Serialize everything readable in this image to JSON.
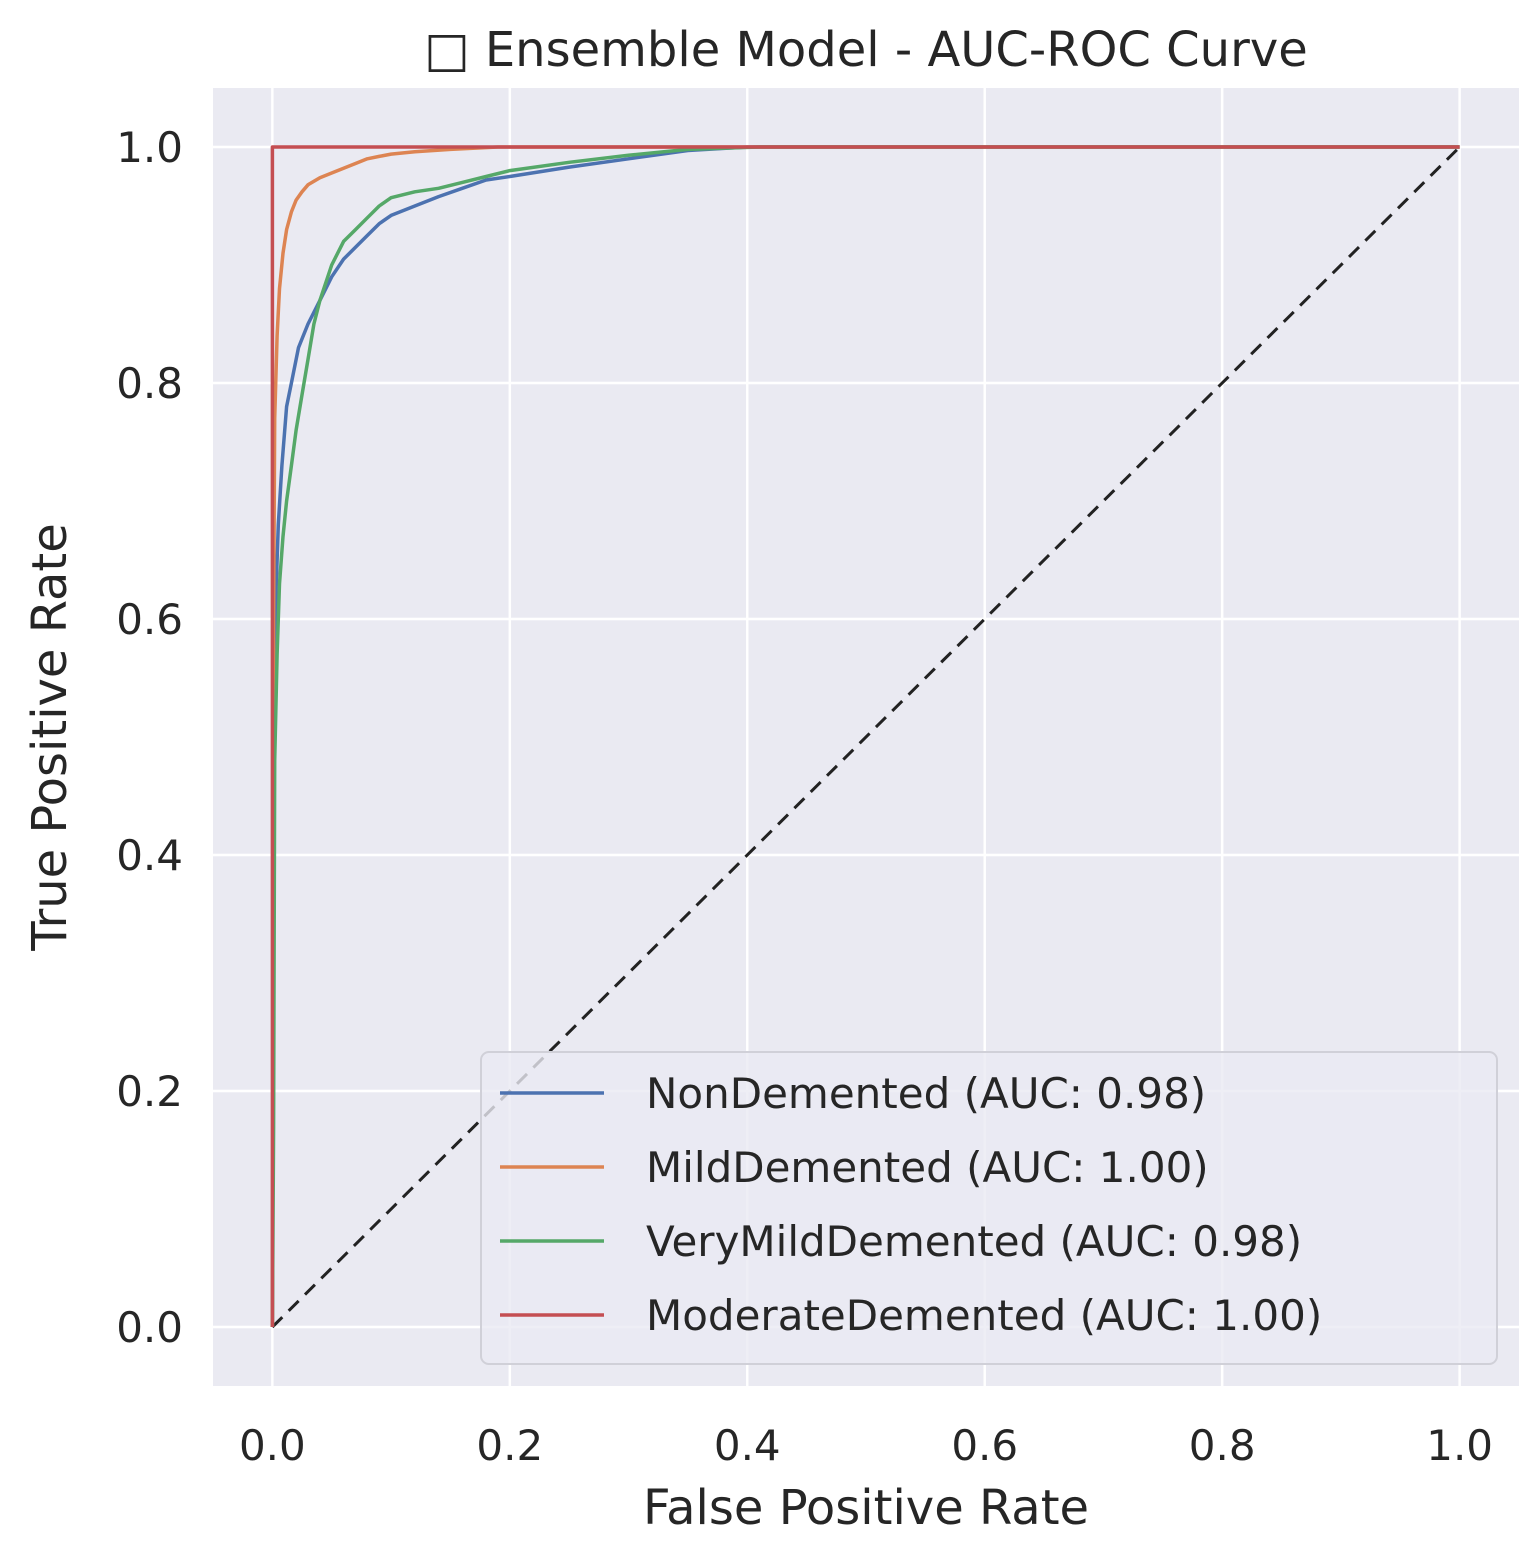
{
  "chart_data": {
    "type": "line",
    "title": "□ Ensemble Model - AUC-ROC Curve",
    "xlabel": "False Positive Rate",
    "ylabel": "True Positive Rate",
    "xlim": [
      -0.05,
      1.05
    ],
    "ylim": [
      -0.05,
      1.05
    ],
    "grid": true,
    "legend_position": "lower-right",
    "xticks": [
      0.0,
      0.2,
      0.4,
      0.6,
      0.8,
      1.0
    ],
    "xtick_labels": [
      "0.0",
      "0.2",
      "0.4",
      "0.6",
      "0.8",
      "1.0"
    ],
    "yticks": [
      0.0,
      0.2,
      0.4,
      0.6,
      0.8,
      1.0
    ],
    "ytick_labels": [
      "0.0",
      "0.2",
      "0.4",
      "0.6",
      "0.8",
      "1.0"
    ],
    "baseline": {
      "x": [
        0,
        1
      ],
      "y": [
        0,
        1
      ],
      "style": "dashed",
      "color": "#222222"
    },
    "series": [
      {
        "name": "NonDemented (AUC: 0.98)",
        "color": "#4c72b0",
        "x": [
          0,
          0.001,
          0.003,
          0.005,
          0.008,
          0.012,
          0.016,
          0.022,
          0.03,
          0.04,
          0.05,
          0.06,
          0.07,
          0.08,
          0.09,
          0.1,
          0.12,
          0.14,
          0.16,
          0.18,
          0.2,
          0.25,
          0.3,
          0.35,
          0.4,
          1.0
        ],
        "y": [
          0,
          0.5,
          0.62,
          0.68,
          0.73,
          0.78,
          0.8,
          0.83,
          0.85,
          0.87,
          0.89,
          0.905,
          0.915,
          0.925,
          0.935,
          0.942,
          0.95,
          0.958,
          0.965,
          0.972,
          0.975,
          0.983,
          0.99,
          0.997,
          1.0,
          1.0
        ]
      },
      {
        "name": "MildDemented (AUC: 1.00)",
        "color": "#dd8452",
        "x": [
          0,
          0.001,
          0.002,
          0.004,
          0.006,
          0.009,
          0.012,
          0.016,
          0.02,
          0.025,
          0.03,
          0.04,
          0.05,
          0.06,
          0.07,
          0.08,
          0.09,
          0.1,
          0.12,
          0.15,
          0.19,
          1.0
        ],
        "y": [
          0,
          0.6,
          0.77,
          0.84,
          0.88,
          0.91,
          0.93,
          0.945,
          0.955,
          0.962,
          0.968,
          0.974,
          0.978,
          0.982,
          0.986,
          0.99,
          0.992,
          0.994,
          0.996,
          0.998,
          1.0,
          1.0
        ]
      },
      {
        "name": "VeryMildDemented (AUC: 0.98)",
        "color": "#55a868",
        "x": [
          0,
          0.001,
          0.002,
          0.004,
          0.006,
          0.009,
          0.012,
          0.016,
          0.02,
          0.025,
          0.03,
          0.035,
          0.04,
          0.05,
          0.06,
          0.07,
          0.08,
          0.09,
          0.1,
          0.12,
          0.14,
          0.16,
          0.18,
          0.2,
          0.25,
          0.3,
          0.35,
          0.41,
          1.0
        ],
        "y": [
          0,
          0.17,
          0.48,
          0.57,
          0.63,
          0.67,
          0.7,
          0.73,
          0.76,
          0.79,
          0.82,
          0.85,
          0.87,
          0.9,
          0.92,
          0.93,
          0.94,
          0.95,
          0.957,
          0.962,
          0.965,
          0.97,
          0.975,
          0.98,
          0.987,
          0.993,
          0.998,
          1.0,
          1.0
        ]
      },
      {
        "name": "ModerateDemented (AUC: 1.00)",
        "color": "#c44e52",
        "x": [
          0,
          0,
          0.003,
          1.0
        ],
        "y": [
          0,
          1.0,
          1.0,
          1.0
        ]
      }
    ]
  }
}
